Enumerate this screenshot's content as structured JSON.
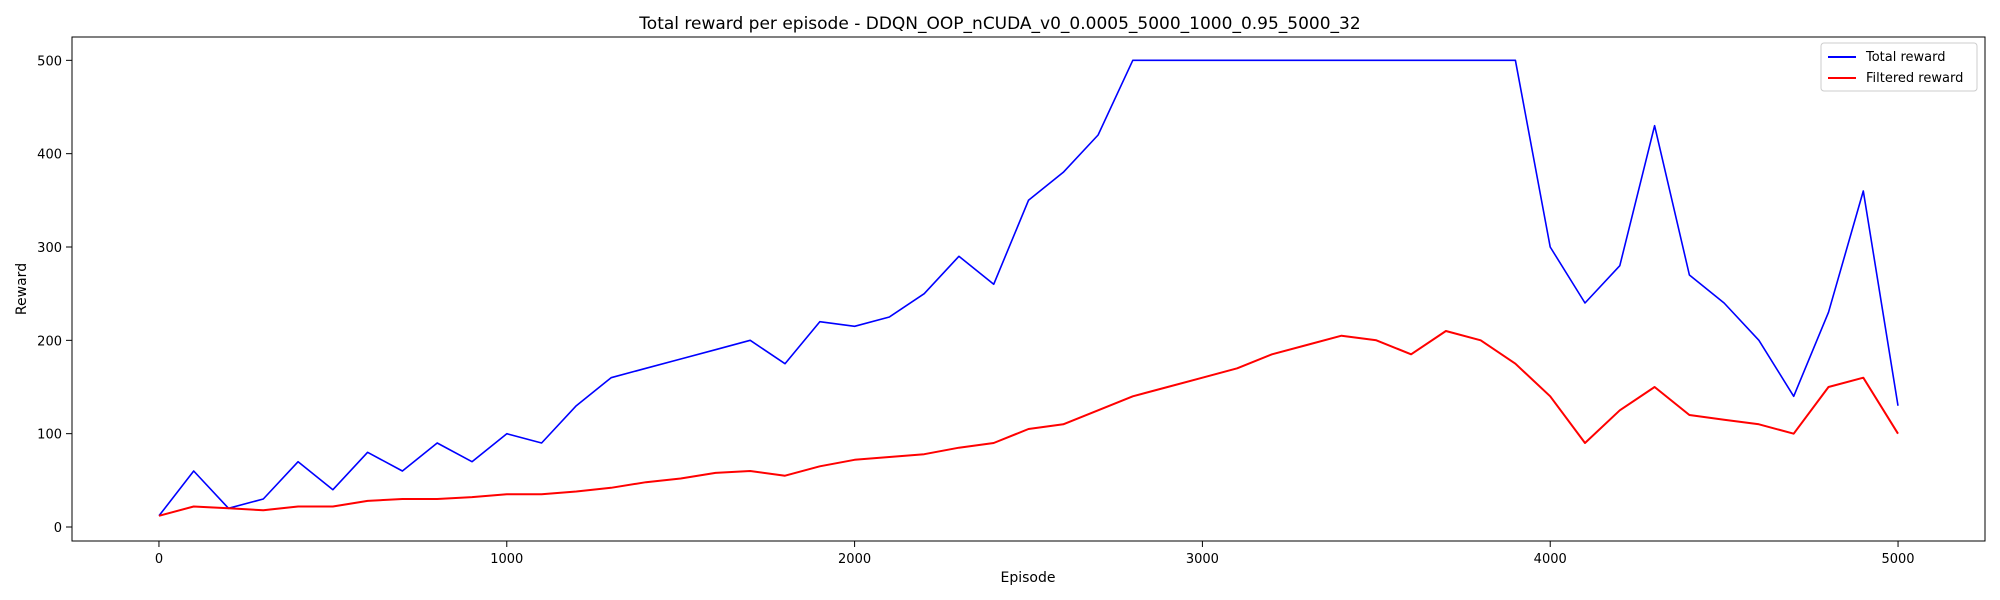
{
  "chart_data": {
    "type": "line",
    "title": "Total reward per episode - DDQN_OOP_nCUDA_v0_0.0005_5000_1000_0.95_5000_32",
    "xlabel": "Episode",
    "ylabel": "Reward",
    "xlim": [
      -250,
      5250
    ],
    "ylim": [
      -15,
      525
    ],
    "xticks": [
      0,
      1000,
      2000,
      3000,
      4000,
      5000
    ],
    "yticks": [
      0,
      100,
      200,
      300,
      400,
      500
    ],
    "grid": false,
    "legend": "top-right",
    "series": [
      {
        "name": "Total reward",
        "color": "#0000ff",
        "x": [
          0,
          100,
          200,
          300,
          400,
          500,
          600,
          700,
          800,
          900,
          1000,
          1100,
          1200,
          1300,
          1400,
          1500,
          1600,
          1700,
          1800,
          1900,
          2000,
          2100,
          2200,
          2300,
          2400,
          2500,
          2600,
          2700,
          2800,
          2900,
          3000,
          3100,
          3200,
          3300,
          3400,
          3500,
          3600,
          3700,
          3800,
          3900,
          4000,
          4100,
          4200,
          4300,
          4400,
          4500,
          4600,
          4700,
          4800,
          4900,
          5000
        ],
        "values": [
          12,
          60,
          20,
          30,
          70,
          40,
          80,
          60,
          90,
          70,
          100,
          90,
          130,
          160,
          170,
          180,
          190,
          200,
          175,
          220,
          215,
          225,
          250,
          290,
          260,
          350,
          380,
          420,
          500,
          500,
          500,
          500,
          500,
          500,
          500,
          500,
          500,
          500,
          500,
          500,
          300,
          240,
          280,
          430,
          270,
          240,
          200,
          140,
          230,
          360,
          130
        ]
      },
      {
        "name": "Filtered reward",
        "color": "#ff0000",
        "x": [
          0,
          100,
          200,
          300,
          400,
          500,
          600,
          700,
          800,
          900,
          1000,
          1100,
          1200,
          1300,
          1400,
          1500,
          1600,
          1700,
          1800,
          1900,
          2000,
          2100,
          2200,
          2300,
          2400,
          2500,
          2600,
          2700,
          2800,
          2900,
          3000,
          3100,
          3200,
          3300,
          3400,
          3500,
          3600,
          3700,
          3800,
          3900,
          4000,
          4100,
          4200,
          4300,
          4400,
          4500,
          4600,
          4700,
          4800,
          4900,
          5000
        ],
        "values": [
          12,
          22,
          20,
          18,
          22,
          22,
          28,
          30,
          30,
          32,
          35,
          35,
          38,
          42,
          48,
          52,
          58,
          60,
          55,
          65,
          72,
          75,
          78,
          85,
          90,
          105,
          110,
          125,
          140,
          150,
          160,
          170,
          185,
          195,
          205,
          200,
          185,
          210,
          200,
          175,
          140,
          90,
          125,
          150,
          120,
          115,
          110,
          100,
          150,
          160,
          100
        ]
      }
    ]
  }
}
